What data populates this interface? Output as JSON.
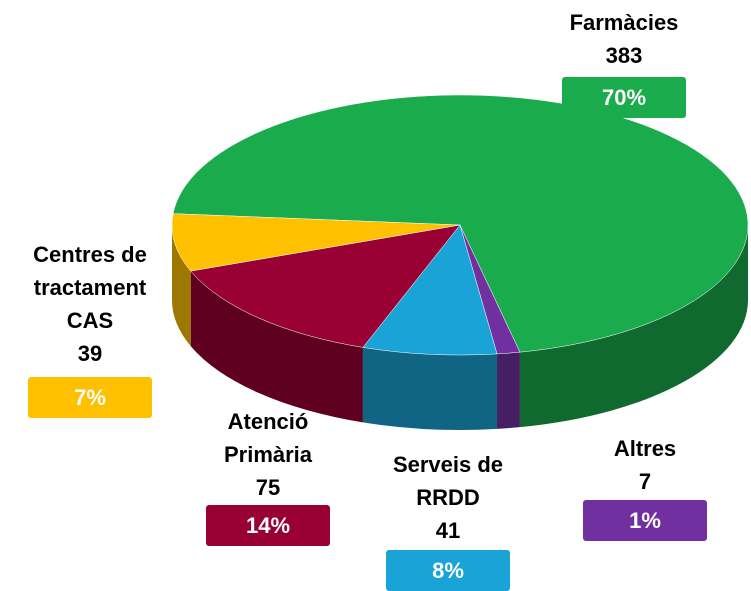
{
  "chart_data": {
    "type": "pie3d",
    "categories": [
      "Farmàcies",
      "Altres",
      "Serveis de RRDD",
      "Atenció Primària",
      "Centres de tractament CAS"
    ],
    "values": [
      383,
      7,
      41,
      75,
      39
    ],
    "percent_labels": [
      "70%",
      "1%",
      "8%",
      "14%",
      "7%"
    ],
    "colors": [
      "#1aab4d",
      "#7030a0",
      "#19a3d6",
      "#990033",
      "#ffc000"
    ]
  }
}
